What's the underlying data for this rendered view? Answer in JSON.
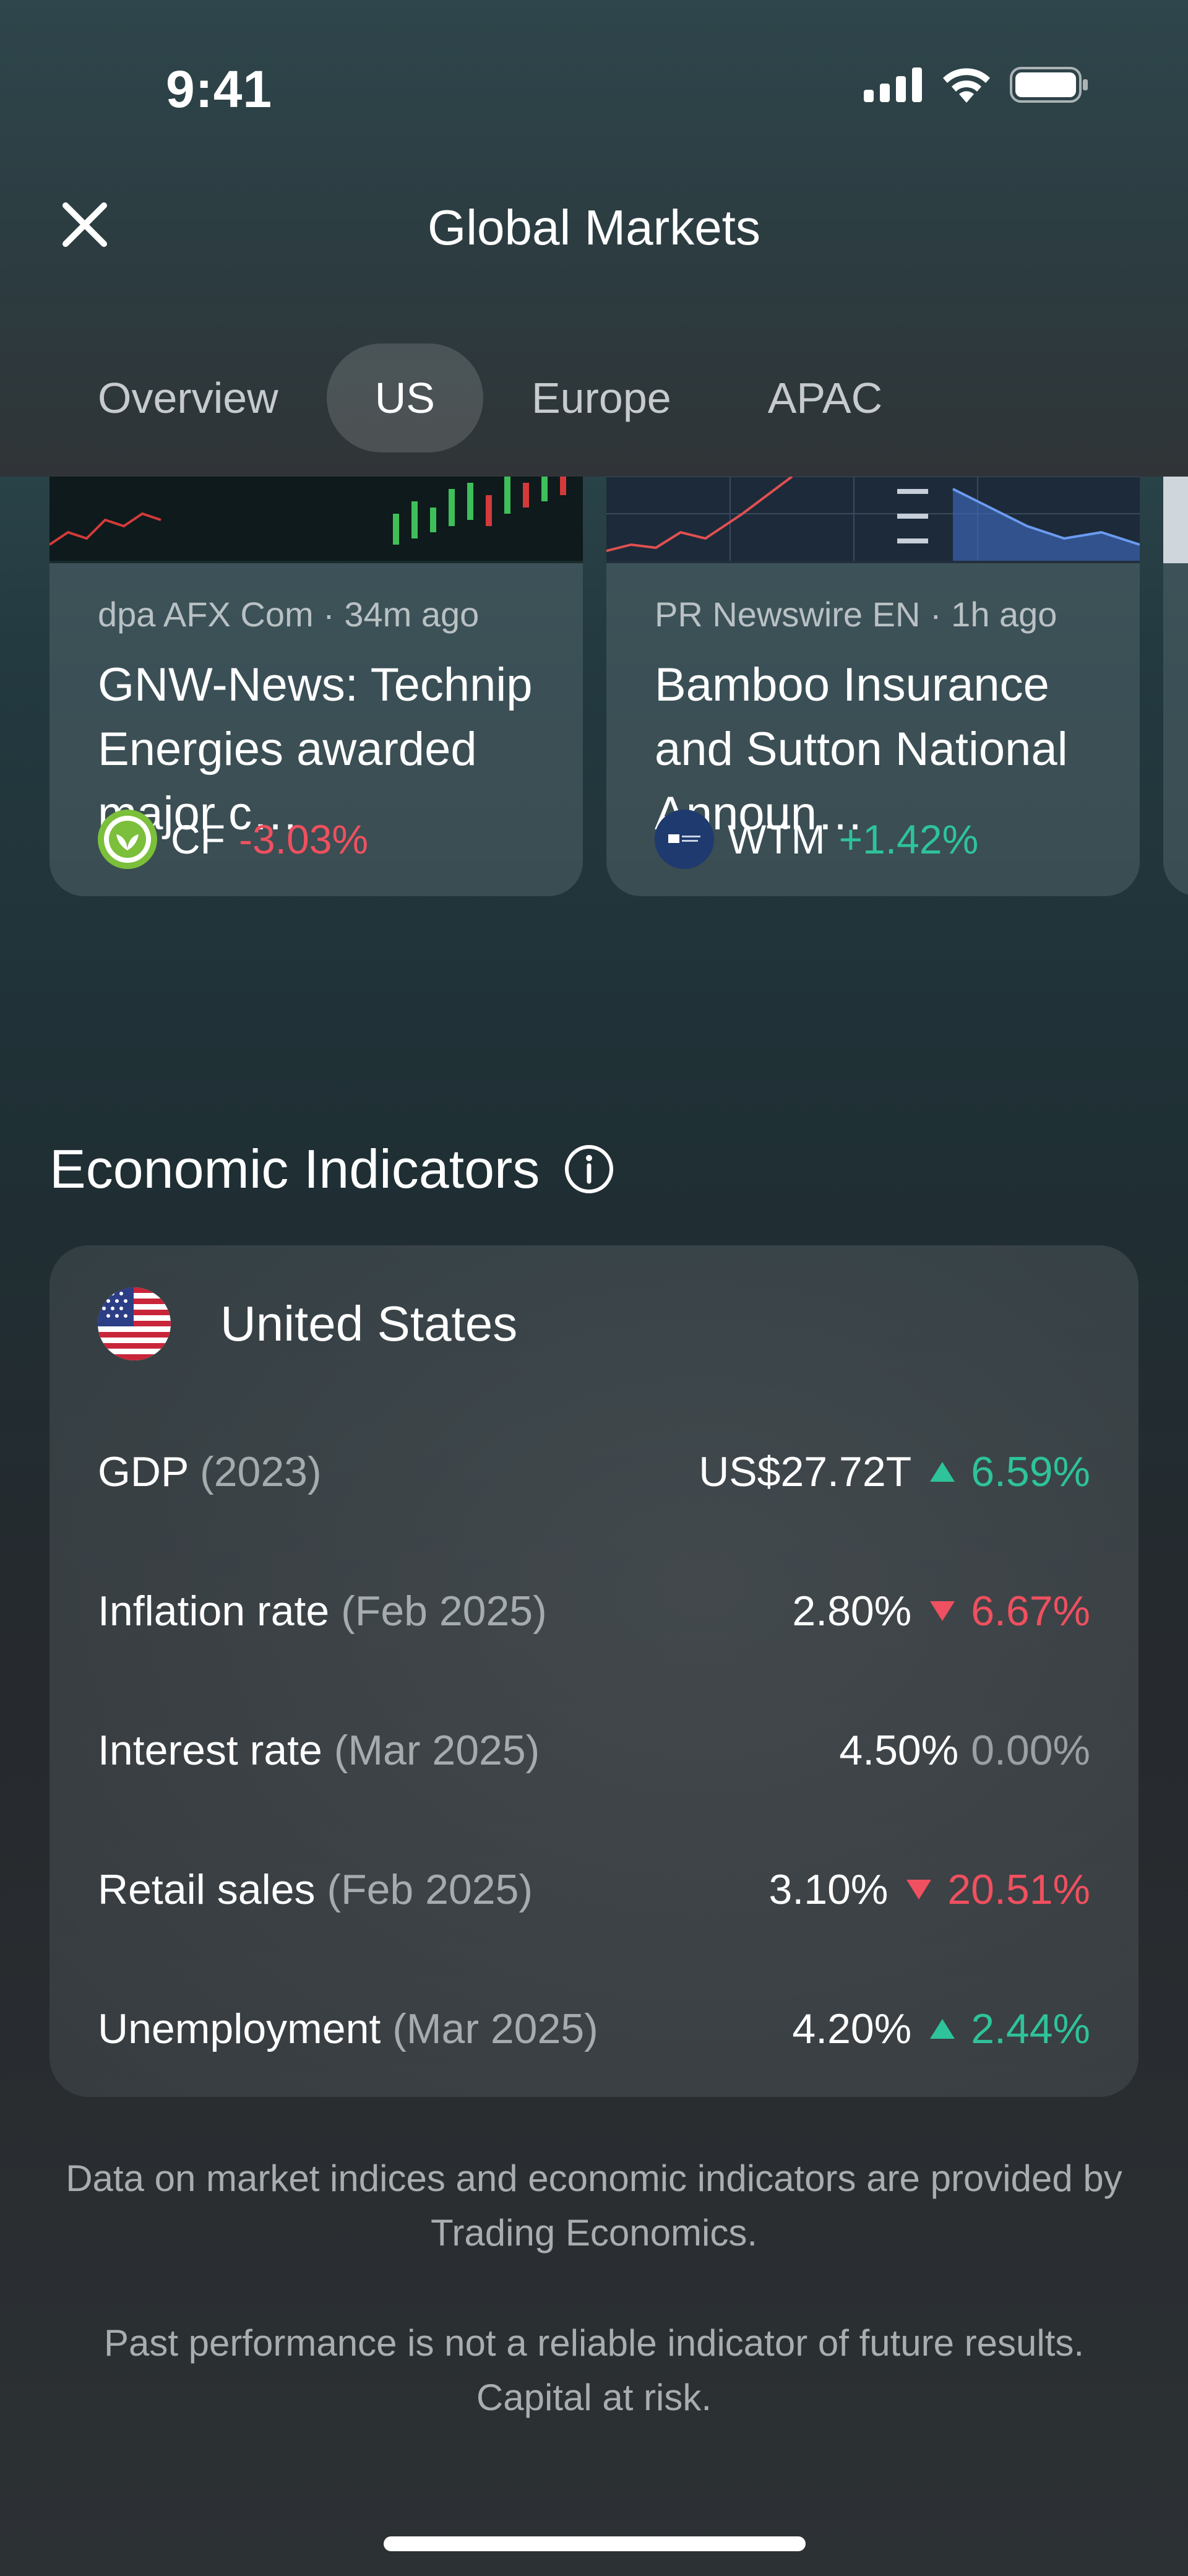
{
  "status_bar": {
    "time": "9:41",
    "icons": [
      "cellular-signal-icon",
      "wifi-icon",
      "battery-icon"
    ]
  },
  "header": {
    "title": "Global Markets",
    "tabs": [
      {
        "label": "Overview",
        "active": false
      },
      {
        "label": "US",
        "active": true
      },
      {
        "label": "Europe",
        "active": false
      },
      {
        "label": "APAC",
        "active": false
      }
    ]
  },
  "news": [
    {
      "source": "dpa AFX Com",
      "age": "34m ago",
      "title": "GNW-News: Technip Energies awarded major c…",
      "ticker": "CF",
      "change": "-3.03%",
      "direction": "down"
    },
    {
      "source": "PR Newswire EN",
      "age": "1h ago",
      "title": "Bamboo Insurance and Sutton National Announ…",
      "ticker": "WTM",
      "change": "+1.42%",
      "direction": "up"
    }
  ],
  "economic": {
    "title": "Economic Indicators",
    "country": "United States",
    "rows": [
      {
        "label": "GDP",
        "period": "(2023)",
        "value": "US$27.72T",
        "change": "6.59%",
        "direction": "up"
      },
      {
        "label": "Inflation rate",
        "period": "(Feb 2025)",
        "value": "2.80%",
        "change": "6.67%",
        "direction": "down"
      },
      {
        "label": "Interest rate",
        "period": "(Mar 2025)",
        "value": "4.50%",
        "change": "0.00%",
        "direction": "flat"
      },
      {
        "label": "Retail sales",
        "period": "(Feb 2025)",
        "value": "3.10%",
        "change": "20.51%",
        "direction": "down"
      },
      {
        "label": "Unemployment",
        "period": "(Mar 2025)",
        "value": "4.20%",
        "change": "2.44%",
        "direction": "up"
      }
    ]
  },
  "disclaimers": {
    "data_source": "Data on market indices and economic indicators are provided by Trading Economics.",
    "risk": "Past performance is not a reliable indicator of future results. Capital at risk."
  },
  "colors": {
    "up": "#2ec39a",
    "down": "#f0505f",
    "flat": "#9aa0a3"
  }
}
